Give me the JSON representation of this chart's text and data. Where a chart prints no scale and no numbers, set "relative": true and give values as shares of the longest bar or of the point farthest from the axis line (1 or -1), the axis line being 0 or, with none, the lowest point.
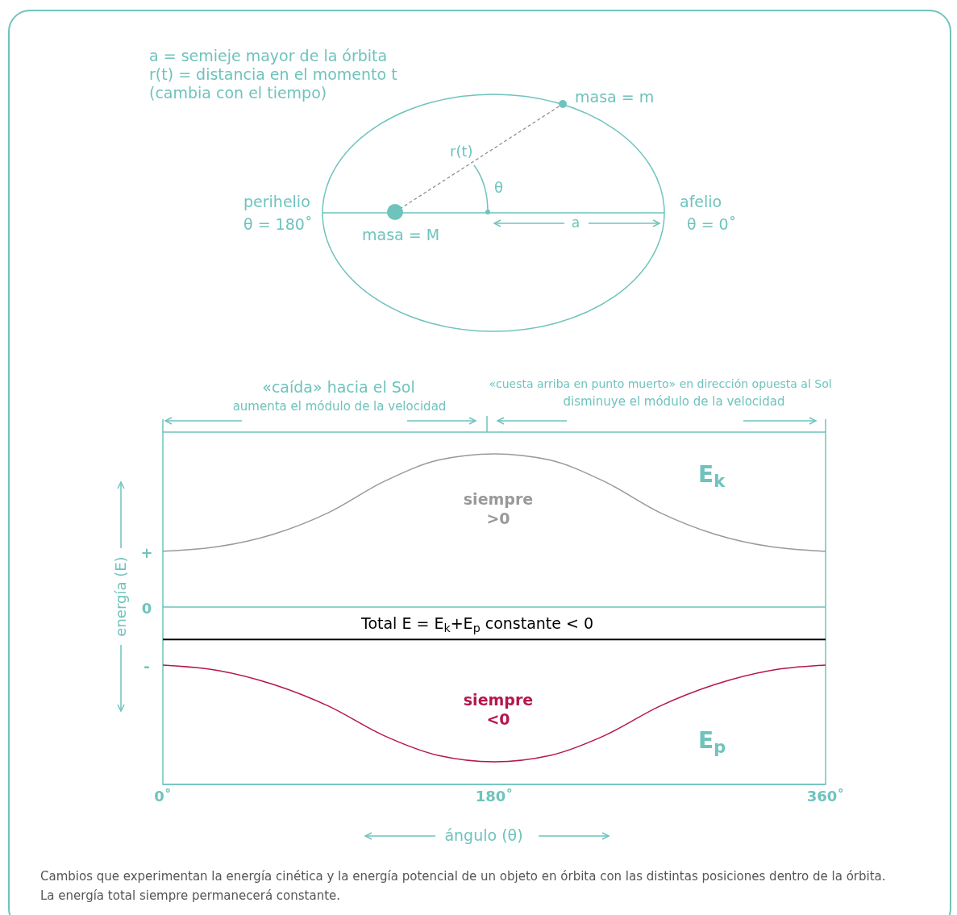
{
  "chart_data": {
    "type": "line",
    "relative": true,
    "xlabel": "ángulo (θ)",
    "ylabel": "energía (E)",
    "x": [
      0,
      30,
      60,
      90,
      120,
      150,
      180,
      210,
      240,
      270,
      300,
      330,
      360
    ],
    "xlim": [
      0,
      360
    ],
    "ref_lines": [
      {
        "axis": "y",
        "value": 0,
        "color": "#6fc3bd"
      }
    ],
    "xticks": [
      {
        "value": 0,
        "label": "0˚"
      },
      {
        "value": 180,
        "label": "180˚"
      },
      {
        "value": 360,
        "label": "360˚"
      }
    ],
    "series": [
      {
        "name": "E$_{k}$",
        "color": "#999999",
        "values": [
          0.36,
          0.39,
          0.47,
          0.61,
          0.81,
          0.95,
          0.99,
          0.95,
          0.81,
          0.61,
          0.47,
          0.39,
          0.36
        ]
      },
      {
        "name": "E$_{p}$",
        "color": "#b5174a",
        "values": [
          -0.375,
          -0.41,
          -0.5,
          -0.64,
          -0.83,
          -0.96,
          -1,
          -0.96,
          -0.83,
          -0.64,
          -0.5,
          -0.41,
          -0.375
        ]
      },
      {
        "name": "Total E = E$_{k}$+E$_{p}$ constante < 0",
        "color": "#000000",
        "values": [
          -0.21,
          -0.21,
          -0.21,
          -0.21,
          -0.21,
          -0.21,
          -0.21,
          -0.21,
          -0.21,
          -0.21,
          -0.21,
          -0.21,
          -0.21
        ]
      }
    ],
    "annotations": [
      "a = semieje mayor de la órbita",
      "r(t) = distancia en el momento t",
      "(cambia con el tiempo)",
      "masa = m",
      "r(t)",
      "θ",
      "perihelio",
      "θ = 180˚",
      "afelio",
      "θ = 0˚",
      "a",
      "masa = M",
      "«caída» hacia el Sol",
      "aumenta el módulo de la velocidad",
      "«cuesta arriba en punto muerto» en dirección opuesta al Sol",
      "disminuye el módulo de la velocidad",
      "siempre >0",
      "siempre <0",
      "+",
      "0",
      "-",
      "Cambios que experimentan la energía cinética y la energía potencial de un objeto en órbita con las distintas posiciones dentro de la órbita. La energía total siempre permanecerá constante."
    ]
  }
}
